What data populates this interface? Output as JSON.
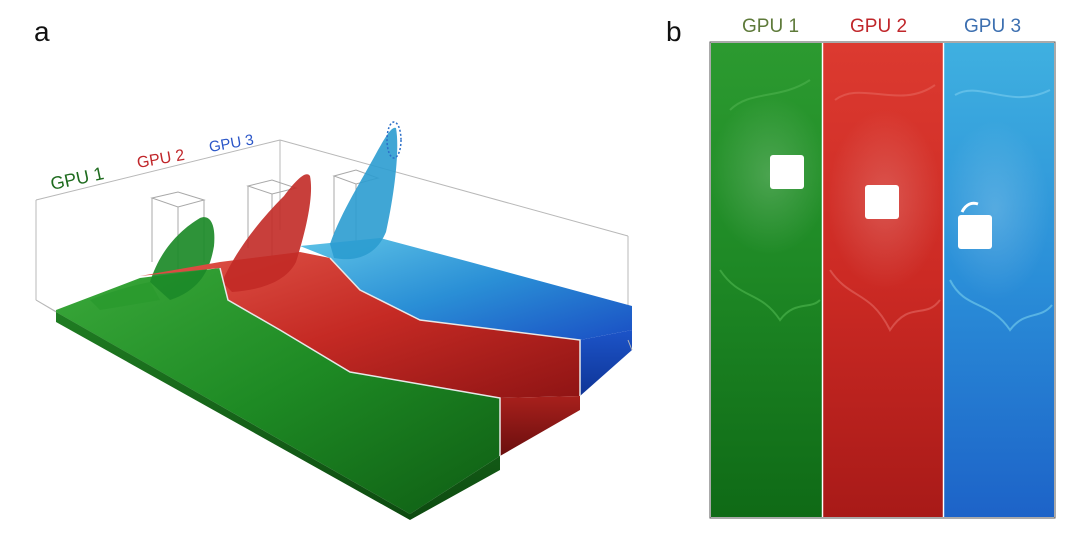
{
  "panel_a": {
    "letter": "a",
    "labels": [
      {
        "text": "GPU 1",
        "color": "#1e6b1e"
      },
      {
        "text": "GPU 2",
        "color": "#c0262a"
      },
      {
        "text": "GPU 3",
        "color": "#2b56c8"
      }
    ]
  },
  "panel_b": {
    "letter": "b",
    "labels": [
      {
        "text": "GPU 1",
        "color": "#5e7a3a"
      },
      {
        "text": "GPU 2",
        "color": "#c0262a"
      },
      {
        "text": "GPU 3",
        "color": "#3c6fb0"
      }
    ]
  },
  "colors": {
    "gpu1": "#1f8a2a",
    "gpu2": "#c42626",
    "gpu3": "#2b8ed0"
  }
}
